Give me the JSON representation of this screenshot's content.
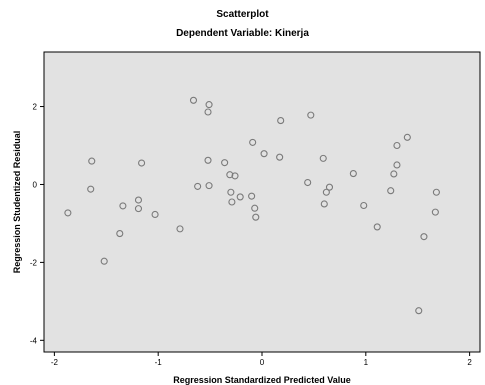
{
  "chart_data": {
    "type": "scatter",
    "title": "Scatterplot",
    "subtitle": "Dependent Variable: Kinerja",
    "xlabel": "Regression Standardized Predicted Value",
    "ylabel": "Regression Studentized Residual",
    "xlim": [
      -2.1,
      2.1
    ],
    "ylim": [
      -4.3,
      3.4
    ],
    "xticks": [
      -2,
      -1,
      0,
      1,
      2
    ],
    "yticks": [
      -4,
      -2,
      0,
      2
    ],
    "grid": false,
    "plot_background": "#e2e2e2",
    "marker_color": "#7a7a7a",
    "points": [
      {
        "x": -1.87,
        "y": -0.73
      },
      {
        "x": -1.64,
        "y": 0.6
      },
      {
        "x": -1.65,
        "y": -0.12
      },
      {
        "x": -1.52,
        "y": -1.97
      },
      {
        "x": -1.37,
        "y": -1.26
      },
      {
        "x": -1.34,
        "y": -0.55
      },
      {
        "x": -1.19,
        "y": -0.4
      },
      {
        "x": -1.19,
        "y": -0.62
      },
      {
        "x": -1.16,
        "y": 0.55
      },
      {
        "x": -1.03,
        "y": -0.77
      },
      {
        "x": -0.79,
        "y": -1.14
      },
      {
        "x": -0.66,
        "y": 2.16
      },
      {
        "x": -0.51,
        "y": 2.05
      },
      {
        "x": -0.52,
        "y": 1.86
      },
      {
        "x": -0.52,
        "y": 0.62
      },
      {
        "x": -0.51,
        "y": -0.03
      },
      {
        "x": -0.62,
        "y": -0.05
      },
      {
        "x": -0.36,
        "y": 0.56
      },
      {
        "x": -0.31,
        "y": 0.25
      },
      {
        "x": -0.26,
        "y": 0.22
      },
      {
        "x": -0.3,
        "y": -0.2
      },
      {
        "x": -0.29,
        "y": -0.45
      },
      {
        "x": -0.21,
        "y": -0.32
      },
      {
        "x": -0.1,
        "y": -0.3
      },
      {
        "x": -0.07,
        "y": -0.61
      },
      {
        "x": -0.06,
        "y": -0.84
      },
      {
        "x": -0.09,
        "y": 1.08
      },
      {
        "x": 0.02,
        "y": 0.79
      },
      {
        "x": 0.18,
        "y": 1.64
      },
      {
        "x": 0.17,
        "y": 0.7
      },
      {
        "x": 0.44,
        "y": 0.05
      },
      {
        "x": 0.47,
        "y": 1.78
      },
      {
        "x": 0.59,
        "y": 0.67
      },
      {
        "x": 0.62,
        "y": -0.2
      },
      {
        "x": 0.6,
        "y": -0.5
      },
      {
        "x": 0.65,
        "y": -0.07
      },
      {
        "x": 0.88,
        "y": 0.28
      },
      {
        "x": 0.98,
        "y": -0.54
      },
      {
        "x": 1.11,
        "y": -1.09
      },
      {
        "x": 1.24,
        "y": -0.16
      },
      {
        "x": 1.27,
        "y": 0.27
      },
      {
        "x": 1.3,
        "y": 0.5
      },
      {
        "x": 1.3,
        "y": 1.0
      },
      {
        "x": 1.4,
        "y": 1.21
      },
      {
        "x": 1.51,
        "y": -3.24
      },
      {
        "x": 1.56,
        "y": -1.34
      },
      {
        "x": 1.68,
        "y": -0.2
      },
      {
        "x": 1.67,
        "y": -0.71
      }
    ]
  }
}
